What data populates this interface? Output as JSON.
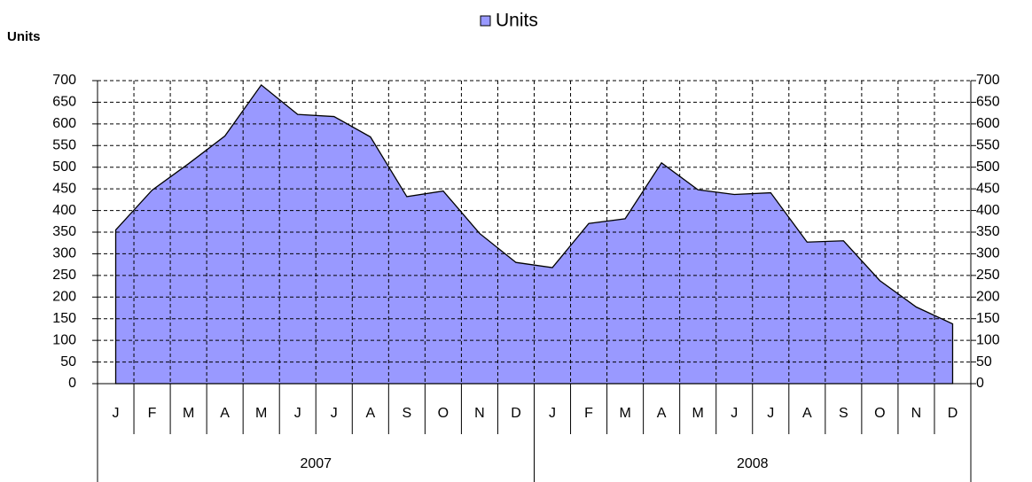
{
  "chart_data": {
    "type": "area",
    "ylabel": "Units",
    "categories": [
      "J",
      "F",
      "M",
      "A",
      "M",
      "J",
      "J",
      "A",
      "S",
      "O",
      "N",
      "D",
      "J",
      "F",
      "M",
      "A",
      "M",
      "J",
      "J",
      "A",
      "S",
      "O",
      "N",
      "D"
    ],
    "category_groups": [
      {
        "label": "2007",
        "count": 12
      },
      {
        "label": "2008",
        "count": 12
      }
    ],
    "series": [
      {
        "name": "Units",
        "color": "#9999ff",
        "values": [
          355,
          447,
          508,
          572,
          690,
          622,
          617,
          570,
          432,
          445,
          347,
          280,
          268,
          370,
          381,
          510,
          448,
          437,
          441,
          327,
          330,
          238,
          177,
          138
        ]
      }
    ],
    "ylim": [
      0,
      700
    ],
    "yticks": [
      0,
      50,
      100,
      150,
      200,
      250,
      300,
      350,
      400,
      450,
      500,
      550,
      600,
      650,
      700
    ],
    "y2lim": [
      0,
      700
    ],
    "y2ticks": [
      0,
      50,
      100,
      150,
      200,
      250,
      300,
      350,
      400,
      450,
      500,
      550,
      600,
      650,
      700
    ],
    "grid": true,
    "legend": "top"
  }
}
